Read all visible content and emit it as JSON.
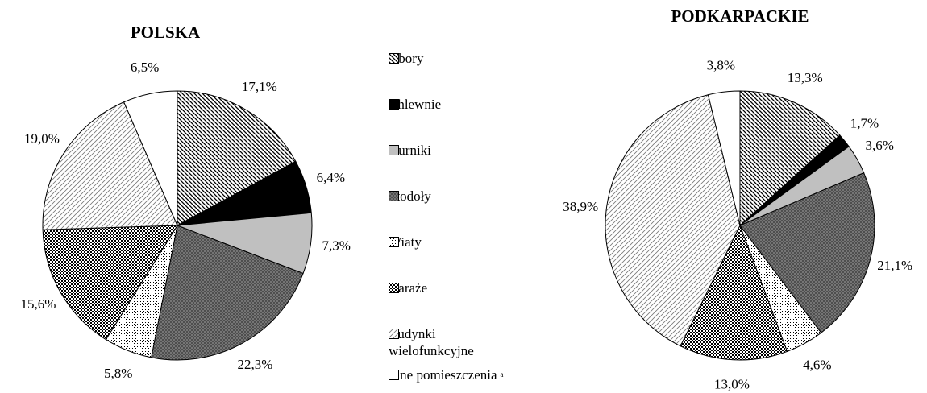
{
  "chart_data": [
    {
      "type": "pie",
      "title": "POLSKA",
      "categories": [
        "Obory",
        "Chlewnie",
        "Kurniki",
        "Stodoły",
        "Wiaty",
        "Garaże",
        "Budynki wielofunkcyjne",
        "Inne pomieszczenia"
      ],
      "values": [
        17.1,
        6.4,
        7.3,
        22.3,
        5.8,
        15.6,
        19.0,
        6.5
      ],
      "value_labels": [
        "17,1%",
        "6,4%",
        "7,3%",
        "22,3%",
        "5,8%",
        "15,6%",
        "19,0%",
        "6,5%"
      ],
      "patterns": [
        "hatch",
        "black",
        "gray",
        "dense",
        "dots",
        "checker",
        "light",
        "white"
      ],
      "legend_note": "a"
    },
    {
      "type": "pie",
      "title": "PODKARPACKIE",
      "categories": [
        "Obory",
        "Chlewnie",
        "Kurniki",
        "Stodoły",
        "Wiaty",
        "Garaże",
        "Budynki wielofunkcyjne",
        "Inne pomieszczenia"
      ],
      "values": [
        13.3,
        1.7,
        3.6,
        21.1,
        4.6,
        13.0,
        38.9,
        3.8
      ],
      "value_labels": [
        "13,3%",
        "1,7%",
        "3,6%",
        "21,1%",
        "4,6%",
        "13,0%",
        "38,9%",
        "3,8%"
      ],
      "patterns": [
        "hatch",
        "black",
        "gray",
        "dense",
        "dots",
        "checker",
        "light",
        "white"
      ]
    }
  ]
}
